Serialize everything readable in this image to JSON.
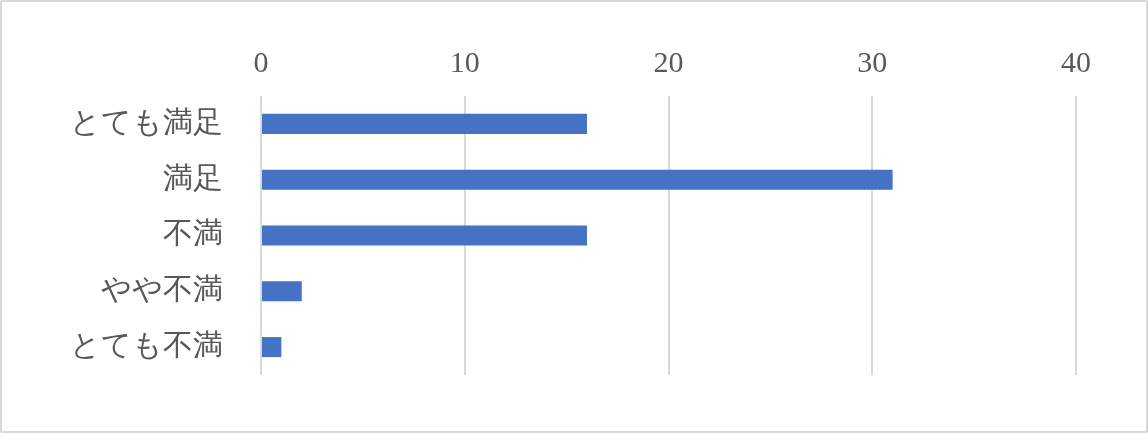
{
  "chart_data": {
    "type": "bar",
    "orientation": "horizontal",
    "categories": [
      "とても満足",
      "満足",
      "不満",
      "やや不満",
      "とても不満"
    ],
    "values": [
      16,
      31,
      16,
      2,
      1
    ],
    "color": "#4472c4",
    "xlim": [
      0,
      40
    ],
    "xticks": [
      0,
      10,
      20,
      30,
      40
    ],
    "grid": "x",
    "legend": false
  }
}
